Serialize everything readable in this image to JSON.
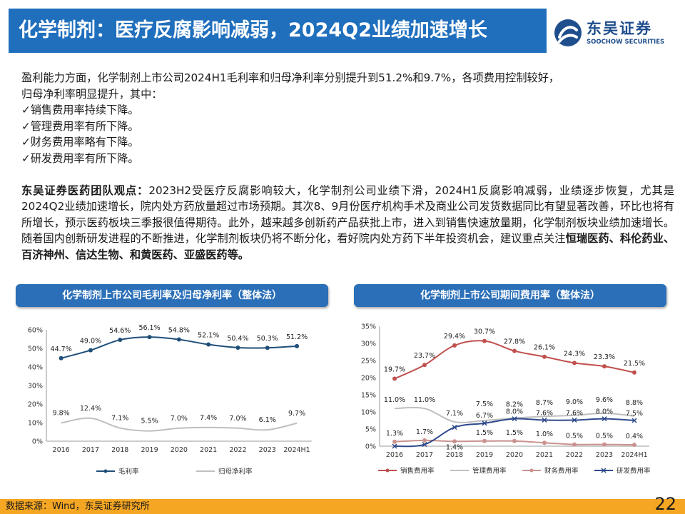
{
  "header": {
    "title": "化学制剂：医疗反腐影响减弱，2024Q2业绩加速增长",
    "logo_cn": "东吴证券",
    "logo_en": "SOOCHOW SECURITIES"
  },
  "body": {
    "intro_line1": "盈利能力方面，化学制剂上市公司2024H1毛利率和归母净利率分别提升到51.2%和9.7%，各项费用控制较好，",
    "intro_line2": "归母净利率明显提升，其中：",
    "bullets": [
      "✓销售费用率持续下降。",
      "✓管理费用率有所下降。",
      "✓财务费用率略有下降。",
      "✓研发费用率有所下降。"
    ],
    "view_label": "东吴证券医药团队观点：",
    "view_text": "2023H2受医疗反腐影响较大，化学制剂公司业绩下滑，2024H1反腐影响减弱，业绩逐步恢复，尤其是2024Q2业绩加速增长，院内处方药放量超过市场预期。其次8、9月份医疗机构手术及商业公司发货数据同比有望显著改善，环比也将有所增长，预示医药板块三季报很值得期待。此外，越来越多创新药产品获批上市，进入到销售快速放量期，化学制剂板块业绩加速增长。随着国内创新研发进程的不断推进，化学制剂板块仍将不断分化，看好院内处方药下半年投资机会，建议重点关注",
    "view_companies": "恒瑞医药、科伦药业、百济神州、信达生物、和黄医药、亚盛医药等。"
  },
  "chart_data": [
    {
      "type": "line",
      "title": "化学制剂上市公司毛利率及归母净利率（整体法）",
      "categories": [
        "2016",
        "2017",
        "2018",
        "2019",
        "2020",
        "2021",
        "2022",
        "2023",
        "2024H1"
      ],
      "series": [
        {
          "name": "毛利率",
          "values": [
            44.7,
            49.0,
            54.6,
            56.1,
            54.8,
            52.1,
            50.4,
            50.3,
            51.2
          ],
          "color": "#1f4e79"
        },
        {
          "name": "归母净利率",
          "values": [
            9.8,
            12.4,
            7.1,
            5.5,
            7.0,
            7.4,
            7.0,
            6.1,
            9.7
          ],
          "color": "#bfbfbf"
        }
      ],
      "ylim": [
        0,
        60
      ],
      "yticks": [
        0,
        10,
        20,
        30,
        40,
        50,
        60
      ],
      "ytick_labels": [
        "0%",
        "10%",
        "20%",
        "30%",
        "40%",
        "50%",
        "60%"
      ],
      "legend": "bottom",
      "grid": false
    },
    {
      "type": "line",
      "title": "化学制剂上市公司期间费用率（整体法）",
      "categories": [
        "2016",
        "2017",
        "2018",
        "2019",
        "2020",
        "2021",
        "2022",
        "2023",
        "2024H1"
      ],
      "series": [
        {
          "name": "销售费用率",
          "values": [
            19.7,
            23.7,
            29.4,
            30.7,
            27.8,
            26.1,
            24.3,
            23.3,
            21.5
          ],
          "color": "#c0504d",
          "marker": "dot"
        },
        {
          "name": "管理费用率",
          "values": [
            11.0,
            11.0,
            7.1,
            7.5,
            8.2,
            8.7,
            9.0,
            9.6,
            8.8
          ],
          "color": "#bfbfbf",
          "marker": "none"
        },
        {
          "name": "财务费用率",
          "values": [
            1.3,
            1.7,
            1.4,
            1.5,
            1.5,
            1.0,
            0.5,
            0.5,
            0.4
          ],
          "color": "#c9928f",
          "marker": "dot"
        },
        {
          "name": "研发费用率",
          "values": [
            0.0,
            0.5,
            5.5,
            6.7,
            8.0,
            7.6,
            7.6,
            8.0,
            7.5
          ],
          "color": "#2e4a8c",
          "marker": "x"
        }
      ],
      "labels_shown": [
        [
          "19.7%",
          "23.7%",
          "29.4%",
          "30.7%",
          "27.8%",
          "26.1%",
          "24.3%",
          "23.3%",
          "21.5%"
        ],
        [
          "11.0%",
          "11.0%",
          "7.1%",
          "7.5%",
          "8.2%",
          "8.7%",
          "9.0%",
          "9.6%",
          "8.8%"
        ],
        [
          "1.3%",
          "1.7%",
          "1.4%",
          "1.5%",
          "1.5%",
          "1.0%",
          "0.5%",
          "0.5%",
          "0.4%"
        ],
        [
          "",
          "",
          "",
          "6.7%",
          "8.0%",
          "7.6%",
          "7.6%",
          "8.0%",
          "7.5%"
        ]
      ],
      "ylim": [
        0,
        35
      ],
      "yticks": [
        0,
        5,
        10,
        15,
        20,
        25,
        30,
        35
      ],
      "ytick_labels": [
        "0%",
        "5%",
        "10%",
        "15%",
        "20%",
        "25%",
        "30%",
        "35%"
      ],
      "legend": "bottom",
      "grid": false
    }
  ],
  "footer": {
    "source": "数据来源：Wind，东吴证券研究所",
    "page": "22"
  }
}
